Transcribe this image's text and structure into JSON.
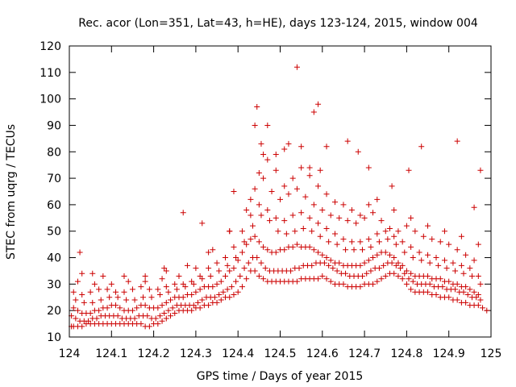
{
  "chart_data": {
    "type": "scatter",
    "title": "Rec. acor (Lon=351, Lat=43, h=HE), days 123-124, 2015, window 004",
    "xlabel": "GPS time / Days of year 2015",
    "ylabel": "STEC from uqrg / TECUs",
    "xlim": [
      124,
      125
    ],
    "ylim": [
      10,
      120
    ],
    "x_ticks": [
      "124",
      "124.1",
      "124.2",
      "124.3",
      "124.4",
      "124.5",
      "124.6",
      "124.7",
      "124.8",
      "124.9",
      "125"
    ],
    "y_ticks": [
      "10",
      "20",
      "30",
      "40",
      "50",
      "60",
      "70",
      "80",
      "90",
      "100",
      "110",
      "120"
    ],
    "grid": false,
    "marker": "+",
    "series_color": "#cc0000",
    "series": [
      {
        "x": [
          124.005,
          124.01,
          124.02,
          124.03,
          124.04,
          124.05,
          124.06,
          124.07,
          124.08,
          124.09,
          124.1,
          124.11,
          124.12,
          124.13,
          124.14,
          124.15,
          124.16,
          124.17,
          124.18,
          124.19,
          124.2,
          124.21,
          124.22,
          124.23,
          124.24,
          124.25,
          124.26,
          124.27,
          124.28,
          124.29,
          124.3,
          124.31,
          124.32,
          124.33,
          124.34,
          124.35,
          124.36,
          124.37,
          124.38,
          124.39,
          124.4,
          124.41,
          124.42,
          124.43,
          124.44,
          124.45,
          124.46,
          124.47,
          124.48,
          124.49,
          124.5,
          124.51,
          124.52,
          124.53,
          124.54,
          124.55,
          124.56,
          124.57,
          124.58,
          124.59,
          124.6,
          124.61,
          124.62,
          124.63,
          124.64,
          124.65,
          124.66,
          124.67,
          124.68,
          124.69,
          124.7,
          124.71,
          124.72,
          124.73,
          124.74,
          124.75,
          124.76,
          124.77,
          124.78,
          124.79,
          124.8,
          124.81,
          124.82,
          124.83,
          124.84,
          124.85,
          124.86,
          124.87,
          124.88,
          124.89,
          124.9,
          124.91,
          124.92,
          124.93,
          124.94,
          124.95,
          124.96,
          124.97,
          124.98,
          124.99
        ],
        "y": [
          14,
          14,
          14,
          14,
          15,
          15,
          15,
          15,
          15,
          15,
          15,
          15,
          15,
          15,
          15,
          15,
          15,
          15,
          14,
          14,
          15,
          15,
          16,
          17,
          18,
          19,
          20,
          20,
          20,
          20,
          21,
          21,
          22,
          22,
          23,
          23,
          24,
          25,
          25,
          26,
          27,
          29,
          32,
          35,
          35,
          33,
          32,
          31,
          31,
          31,
          31,
          31,
          31,
          31,
          31,
          32,
          32,
          32,
          32,
          32,
          33,
          32,
          31,
          30,
          30,
          30,
          29,
          29,
          29,
          29,
          30,
          30,
          30,
          31,
          32,
          33,
          34,
          34,
          33,
          32,
          30,
          28,
          27,
          27,
          27,
          27,
          26,
          26,
          25,
          25,
          25,
          24,
          24,
          23,
          23,
          22,
          22,
          22,
          21,
          20
        ]
      },
      {
        "x": [
          124.005,
          124.015,
          124.025,
          124.035,
          124.045,
          124.055,
          124.065,
          124.075,
          124.085,
          124.095,
          124.105,
          124.115,
          124.125,
          124.135,
          124.145,
          124.155,
          124.165,
          124.175,
          124.185,
          124.195,
          124.205,
          124.215,
          124.225,
          124.235,
          124.245,
          124.255,
          124.265,
          124.275,
          124.285,
          124.295,
          124.305,
          124.315,
          124.325,
          124.335,
          124.345,
          124.355,
          124.365,
          124.375,
          124.385,
          124.395,
          124.405,
          124.415,
          124.425,
          124.435,
          124.445,
          124.455,
          124.465,
          124.475,
          124.485,
          124.495,
          124.505,
          124.515,
          124.525,
          124.535,
          124.545,
          124.555,
          124.565,
          124.575,
          124.585,
          124.595,
          124.605,
          124.615,
          124.625,
          124.635,
          124.645,
          124.655,
          124.665,
          124.675,
          124.685,
          124.695,
          124.705,
          124.715,
          124.725,
          124.735,
          124.745,
          124.755,
          124.765,
          124.775,
          124.785,
          124.795,
          124.805,
          124.815,
          124.825,
          124.835,
          124.845,
          124.855,
          124.865,
          124.875,
          124.885,
          124.895,
          124.905,
          124.915,
          124.925,
          124.935,
          124.945,
          124.955,
          124.965,
          124.975
        ],
        "y": [
          18,
          17,
          16,
          16,
          16,
          17,
          17,
          18,
          18,
          18,
          18,
          18,
          17,
          17,
          17,
          17,
          18,
          18,
          18,
          17,
          17,
          18,
          19,
          20,
          21,
          22,
          22,
          22,
          22,
          22,
          23,
          24,
          25,
          25,
          25,
          26,
          27,
          28,
          29,
          31,
          33,
          36,
          38,
          40,
          40,
          38,
          36,
          35,
          35,
          35,
          35,
          35,
          35,
          36,
          36,
          37,
          37,
          37,
          38,
          38,
          38,
          37,
          36,
          35,
          34,
          34,
          33,
          33,
          33,
          33,
          34,
          35,
          36,
          36,
          37,
          38,
          38,
          37,
          36,
          34,
          32,
          31,
          30,
          30,
          30,
          30,
          29,
          29,
          29,
          28,
          28,
          28,
          27,
          27,
          26,
          25,
          25,
          24
        ]
      },
      {
        "x": [
          124.01,
          124.02,
          124.03,
          124.04,
          124.05,
          124.06,
          124.07,
          124.08,
          124.09,
          124.1,
          124.11,
          124.12,
          124.13,
          124.14,
          124.15,
          124.16,
          124.17,
          124.18,
          124.19,
          124.2,
          124.21,
          124.22,
          124.23,
          124.24,
          124.25,
          124.26,
          124.27,
          124.28,
          124.29,
          124.3,
          124.31,
          124.32,
          124.33,
          124.34,
          124.35,
          124.36,
          124.37,
          124.38,
          124.39,
          124.4,
          124.41,
          124.42,
          124.43,
          124.44,
          124.45,
          124.46,
          124.47,
          124.48,
          124.49,
          124.5,
          124.51,
          124.52,
          124.53,
          124.54,
          124.55,
          124.56,
          124.57,
          124.58,
          124.59,
          124.6,
          124.61,
          124.62,
          124.63,
          124.64,
          124.65,
          124.66,
          124.67,
          124.68,
          124.69,
          124.7,
          124.71,
          124.72,
          124.73,
          124.74,
          124.75,
          124.76,
          124.77,
          124.78,
          124.79,
          124.8,
          124.81,
          124.82,
          124.83,
          124.84,
          124.85,
          124.86,
          124.87,
          124.88,
          124.89,
          124.9,
          124.91,
          124.92,
          124.93,
          124.94,
          124.95,
          124.96,
          124.97
        ],
        "y": [
          21,
          20,
          19,
          19,
          19,
          20,
          20,
          21,
          21,
          22,
          22,
          21,
          20,
          20,
          20,
          21,
          22,
          22,
          21,
          21,
          21,
          22,
          23,
          24,
          25,
          25,
          25,
          26,
          26,
          27,
          28,
          29,
          29,
          29,
          30,
          31,
          33,
          35,
          36,
          39,
          42,
          45,
          47,
          48,
          46,
          44,
          43,
          42,
          42,
          43,
          43,
          44,
          44,
          45,
          44,
          44,
          44,
          43,
          42,
          41,
          40,
          39,
          38,
          38,
          37,
          37,
          37,
          37,
          37,
          38,
          39,
          40,
          41,
          42,
          42,
          41,
          40,
          38,
          37,
          35,
          34,
          33,
          33,
          33,
          33,
          32,
          32,
          32,
          31,
          31,
          30,
          30,
          29,
          29,
          28,
          27,
          26
        ]
      },
      {
        "x": [
          124.015,
          124.035,
          124.055,
          124.075,
          124.095,
          124.115,
          124.135,
          124.155,
          124.175,
          124.195,
          124.215,
          124.235,
          124.255,
          124.275,
          124.295,
          124.315,
          124.335,
          124.355,
          124.375,
          124.395,
          124.415,
          124.435,
          124.455,
          124.475,
          124.495,
          124.515,
          124.535,
          124.555,
          124.575,
          124.595,
          124.615,
          124.635,
          124.655,
          124.675,
          124.695,
          124.715,
          124.735,
          124.755,
          124.775,
          124.795,
          124.815,
          124.835,
          124.855,
          124.875,
          124.895,
          124.915,
          124.935,
          124.955,
          124.975
        ],
        "y": [
          24,
          23,
          23,
          24,
          25,
          25,
          24,
          24,
          25,
          25,
          26,
          27,
          28,
          29,
          30,
          32,
          33,
          35,
          37,
          40,
          46,
          52,
          56,
          54,
          50,
          49,
          50,
          51,
          50,
          48,
          46,
          45,
          43,
          43,
          43,
          44,
          46,
          47,
          45,
          42,
          40,
          39,
          38,
          37,
          36,
          35,
          34,
          33,
          30
        ]
      },
      {
        "x": [
          124.01,
          124.03,
          124.05,
          124.07,
          124.09,
          124.11,
          124.13,
          124.15,
          124.17,
          124.19,
          124.21,
          124.23,
          124.25,
          124.27,
          124.29,
          124.31,
          124.33,
          124.35,
          124.37,
          124.39,
          124.41,
          124.43,
          124.45,
          124.47,
          124.49,
          124.51,
          124.53,
          124.55,
          124.57,
          124.59,
          124.61,
          124.63,
          124.65,
          124.67,
          124.69,
          124.71,
          124.73,
          124.75,
          124.77,
          124.79,
          124.81,
          124.83,
          124.85,
          124.87,
          124.89,
          124.91,
          124.93,
          124.95,
          124.97
        ],
        "y": [
          27,
          26,
          27,
          28,
          28,
          27,
          27,
          28,
          29,
          28,
          28,
          29,
          30,
          30,
          31,
          33,
          36,
          38,
          40,
          44,
          50,
          56,
          60,
          58,
          55,
          54,
          56,
          57,
          55,
          53,
          51,
          49,
          47,
          46,
          46,
          47,
          49,
          50,
          48,
          46,
          44,
          42,
          41,
          40,
          39,
          38,
          37,
          36,
          33
        ]
      },
      {
        "x": [
          124.02,
          124.06,
          124.1,
          124.14,
          124.18,
          124.22,
          124.26,
          124.3,
          124.34,
          124.38,
          124.42,
          124.44,
          124.46,
          124.48,
          124.5,
          124.52,
          124.54,
          124.56,
          124.58,
          124.6,
          124.62,
          124.64,
          124.66,
          124.68,
          124.7,
          124.72,
          124.74,
          124.76,
          124.78,
          124.8,
          124.82,
          124.84,
          124.86,
          124.88,
          124.9,
          124.92,
          124.94,
          124.96
        ],
        "y": [
          31,
          30,
          30,
          31,
          31,
          32,
          33,
          36,
          43,
          50,
          58,
          66,
          70,
          65,
          62,
          64,
          66,
          63,
          60,
          58,
          56,
          55,
          54,
          53,
          55,
          57,
          54,
          51,
          50,
          52,
          50,
          48,
          47,
          46,
          45,
          43,
          41,
          39
        ]
      },
      {
        "x": [
          124.03,
          124.08,
          124.13,
          124.18,
          124.23,
          124.28,
          124.33,
          124.38,
          124.43,
          124.45,
          124.47,
          124.49,
          124.51,
          124.53,
          124.55,
          124.57,
          124.59,
          124.61,
          124.63,
          124.65,
          124.67,
          124.69,
          124.71,
          124.73,
          124.77,
          124.81,
          124.85,
          124.89,
          124.93,
          124.97
        ],
        "y": [
          34,
          33,
          33,
          33,
          35,
          37,
          42,
          50,
          62,
          72,
          77,
          73,
          67,
          70,
          74,
          71,
          67,
          64,
          61,
          60,
          58,
          56,
          60,
          62,
          58,
          55,
          52,
          50,
          48,
          45
        ]
      },
      {
        "x": [
          124.025,
          124.055,
          124.225,
          124.27,
          124.315,
          124.39,
          124.44,
          124.445,
          124.455,
          124.46,
          124.47,
          124.49,
          124.51,
          124.52,
          124.54,
          124.55,
          124.57,
          124.58,
          124.59,
          124.595,
          124.61,
          124.66,
          124.685,
          124.71,
          124.765,
          124.805,
          124.835,
          124.92,
          124.96,
          124.975
        ],
        "y": [
          42,
          34,
          36,
          57,
          53,
          65,
          90,
          97,
          83,
          79,
          90,
          79,
          81,
          83,
          112,
          82,
          74,
          95,
          98,
          73,
          82,
          84,
          80,
          74,
          67,
          73,
          82,
          84,
          59,
          73
        ]
      }
    ]
  }
}
